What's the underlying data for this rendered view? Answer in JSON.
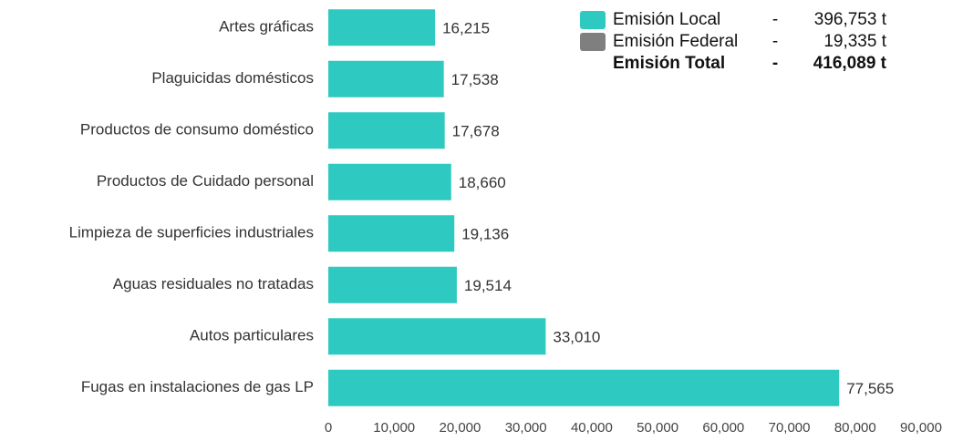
{
  "chart_data": {
    "type": "hbar",
    "categories": [
      "Artes gráficas",
      "Plaguicidas domésticos",
      "Productos de consumo doméstico",
      "Productos de Cuidado personal",
      "Limpieza de superficies industriales",
      "Aguas residuales no tratadas",
      "Autos particulares",
      "Fugas en instalaciones de gas LP"
    ],
    "values": [
      16215,
      17538,
      17678,
      18660,
      19136,
      19514,
      33010,
      77565
    ],
    "value_labels": [
      "16,215",
      "17,538",
      "17,678",
      "18,660",
      "19,136",
      "19,514",
      "33,010",
      "77,565"
    ],
    "color": "#2ec9c0",
    "xlim": [
      0,
      90000
    ],
    "xticks": [
      0,
      {
        "value": 10000,
        "label": "10,000"
      },
      {
        "value": 20000,
        "label": "20,000"
      },
      {
        "value": 30000,
        "label": "30,000"
      },
      {
        "value": 40000,
        "label": "40,000"
      },
      {
        "value": 50000,
        "label": "50,000"
      },
      {
        "value": 60000,
        "label": "60,000"
      },
      {
        "value": 70000,
        "label": "70,000"
      },
      {
        "value": 80000,
        "label": "80,000"
      },
      {
        "value": 90000,
        "label": "90,000"
      }
    ],
    "legend": [
      {
        "label": "Emisión Local",
        "separator": "-",
        "amount": "396,753 t",
        "color": "#2ec9c0"
      },
      {
        "label": "Emisión Federal",
        "separator": "-",
        "amount": "19,335 t",
        "color": "#7f7f7f"
      },
      {
        "label": "Emisión Total",
        "separator": "-",
        "amount": "416,089 t"
      }
    ]
  }
}
